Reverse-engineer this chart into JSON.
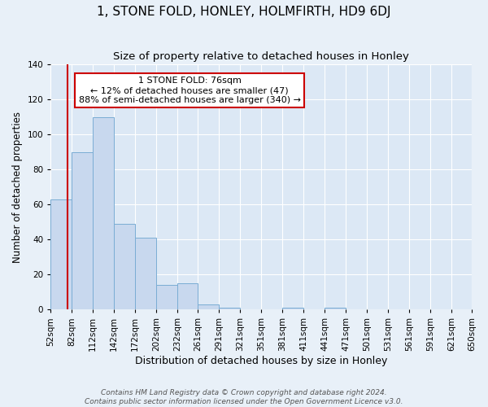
{
  "title": "1, STONE FOLD, HONLEY, HOLMFIRTH, HD9 6DJ",
  "subtitle": "Size of property relative to detached houses in Honley",
  "xlabel": "Distribution of detached houses by size in Honley",
  "ylabel": "Number of detached properties",
  "bar_color": "#c8d8ee",
  "bar_edgecolor": "#7aadd4",
  "background_color": "#dce8f5",
  "fig_background_color": "#e8f0f8",
  "grid_color": "#ffffff",
  "annotation_box_edgecolor": "#cc0000",
  "property_line_color": "#cc0000",
  "annotation_text_line1": "1 STONE FOLD: 76sqm",
  "annotation_text_line2": "← 12% of detached houses are smaller (47)",
  "annotation_text_line3": "88% of semi-detached houses are larger (340) →",
  "property_line_x": 76,
  "categories": [
    "52sqm",
    "82sqm",
    "112sqm",
    "142sqm",
    "172sqm",
    "202sqm",
    "232sqm",
    "261sqm",
    "291sqm",
    "321sqm",
    "351sqm",
    "381sqm",
    "411sqm",
    "441sqm",
    "471sqm",
    "501sqm",
    "531sqm",
    "561sqm",
    "591sqm",
    "621sqm",
    "650sqm"
  ],
  "bin_edges": [
    52,
    82,
    112,
    142,
    172,
    202,
    232,
    261,
    291,
    321,
    351,
    381,
    411,
    441,
    471,
    501,
    531,
    561,
    591,
    621,
    650
  ],
  "values": [
    63,
    90,
    110,
    49,
    41,
    14,
    15,
    3,
    1,
    0,
    0,
    1,
    0,
    1,
    0,
    0,
    0,
    0,
    0,
    0,
    0
  ],
  "ylim": [
    0,
    140
  ],
  "yticks": [
    0,
    20,
    40,
    60,
    80,
    100,
    120,
    140
  ],
  "footer_line1": "Contains HM Land Registry data © Crown copyright and database right 2024.",
  "footer_line2": "Contains public sector information licensed under the Open Government Licence v3.0.",
  "title_fontsize": 11,
  "subtitle_fontsize": 9.5,
  "xlabel_fontsize": 9,
  "ylabel_fontsize": 8.5,
  "tick_fontsize": 7.5,
  "footer_fontsize": 6.5,
  "annotation_fontsize": 8
}
